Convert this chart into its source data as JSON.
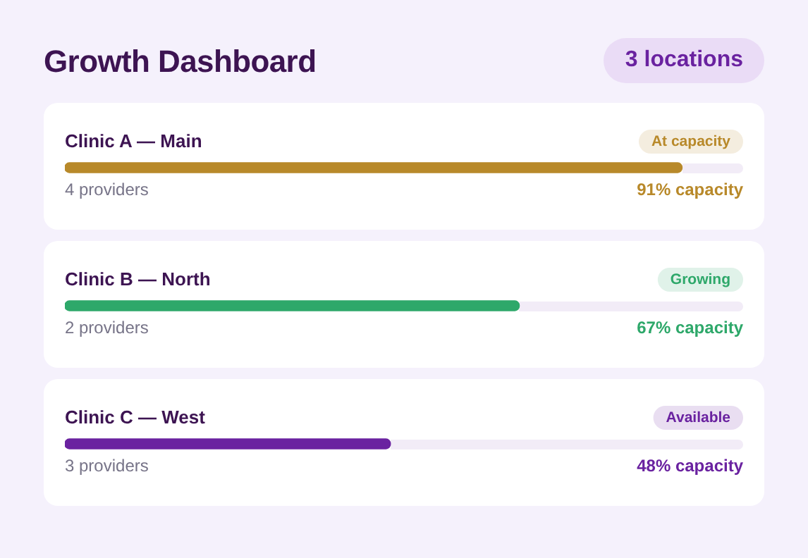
{
  "chart_data": {
    "type": "bar",
    "orientation": "horizontal",
    "title": "Growth Dashboard",
    "categories": [
      "Clinic A — Main",
      "Clinic B — North",
      "Clinic C — West"
    ],
    "values": [
      91,
      67,
      48
    ],
    "colors": [
      "#b8892a",
      "#2ea86a",
      "#6a22a0"
    ],
    "xlim": [
      0,
      100
    ],
    "tick_labels": false,
    "value_labels": [
      "91% capacity",
      "67% capacity",
      "48% capacity"
    ],
    "annotations": [
      "3 locations",
      "At capacity",
      "4 providers",
      "Growing",
      "2 providers",
      "Available",
      "3 providers"
    ]
  }
}
